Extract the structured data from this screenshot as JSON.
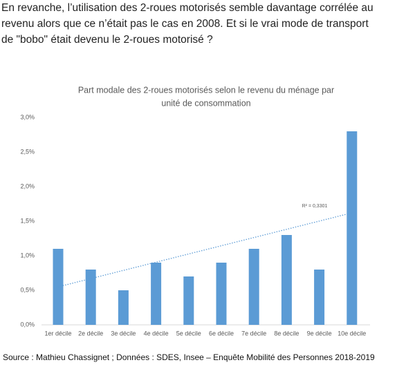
{
  "intro": [
    "En revanche, l’utilisation des 2-roues motorisés semble davantage corrélée au",
    "revenu alors que ce n’était pas le cas en 2008. Et si le vrai mode de transport",
    "de \"bobo\" était devenu le 2-roues motorisé ?"
  ],
  "chart_data": {
    "type": "bar",
    "title": [
      "Part modale des 2-roues motorisés selon le revenu du ménage par",
      "unité de consommation"
    ],
    "categories": [
      "1er décile",
      "2e décile",
      "3e décile",
      "4e décile",
      "5e décile",
      "6e décile",
      "7e décile",
      "8e décile",
      "9e décile",
      "10e décile"
    ],
    "values": [
      1.1,
      0.8,
      0.5,
      0.9,
      0.7,
      0.9,
      1.1,
      1.3,
      0.8,
      2.8
    ],
    "color": "#5b9bd5",
    "ylim": [
      0,
      3
    ],
    "yticks": [
      {
        "value": 0,
        "label": "0,0%"
      },
      {
        "value": 0.5,
        "label": "0,5%"
      },
      {
        "value": 1,
        "label": "1,0%"
      },
      {
        "value": 1.5,
        "label": "1,5%"
      },
      {
        "value": 2,
        "label": "2,0%"
      },
      {
        "value": 2.5,
        "label": "2,5%"
      },
      {
        "value": 3,
        "label": "3,0%"
      }
    ],
    "grid": false,
    "trendline": {
      "label": "R² = 0,3301",
      "values": [
        0.55,
        1.62
      ]
    }
  },
  "source": "Source : Mathieu Chassignet ; Données :  SDES, Insee – Enquête Mobilité des Personnes 2018-2019"
}
